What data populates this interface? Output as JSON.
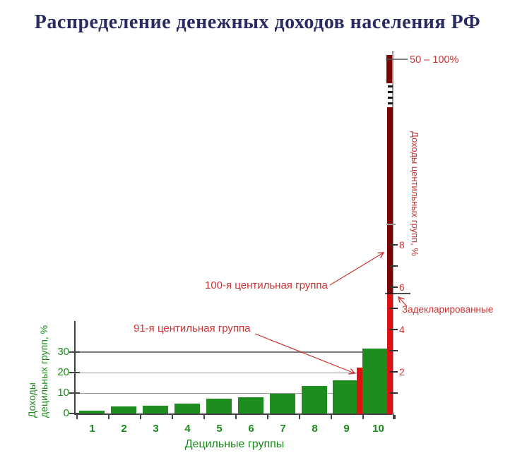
{
  "title": "Распределение денежных доходов населения РФ",
  "chart_data": {
    "type": "bar",
    "title": "Распределение денежных доходов населения РФ",
    "categories": [
      "1",
      "2",
      "3",
      "4",
      "5",
      "6",
      "7",
      "8",
      "9",
      "10"
    ],
    "series": [
      {
        "name": "Доходы децильных групп, %",
        "values": [
          1.5,
          3.5,
          3.9,
          4.8,
          7.2,
          8.0,
          9.7,
          13.4,
          16.2,
          31.8
        ]
      }
    ],
    "xlabel": "Децильные группы",
    "ylabel_line1": "Доходы",
    "ylabel_line2": "децильных групп, %",
    "yticks_left": [
      0,
      10,
      20,
      30
    ],
    "ylim_left": [
      0,
      33
    ],
    "grid": "horizontal",
    "legend": "none",
    "secondary_axis": {
      "ylabel": "Доходы центильных групп, %",
      "yticks": [
        2,
        4,
        6,
        8
      ],
      "ylim": [
        0,
        17
      ],
      "axis_break": true,
      "top_label": "50 – 100%",
      "bars": [
        {
          "name": "91-я центильная группа",
          "value": 2.2
        },
        {
          "name": "Задекларированные",
          "value": 5.7
        },
        {
          "name": "100-я центильная группа",
          "value_range": "50 – 100%"
        }
      ]
    },
    "annotations": [
      {
        "text": "100-я центильная группа",
        "target": "столбец 100-й центильной группы"
      },
      {
        "text": "91-я центильная группа",
        "target": "столбец 91-й центильной группы"
      },
      {
        "text": "Задекларированные",
        "target": "уровень задекларированных доходов"
      },
      {
        "text": "50 – 100%",
        "target": "вершина столбца 100-й центильной группы"
      }
    ],
    "colors": {
      "decile_bars": "#1e8c1e",
      "green_labels": "#1b8a1b",
      "centile_bar_bright": "#dd1111",
      "centile_bar_dark": "#7c0303",
      "red_labels": "#cc3333",
      "title": "#2b2b63",
      "axis": "#444444"
    }
  }
}
